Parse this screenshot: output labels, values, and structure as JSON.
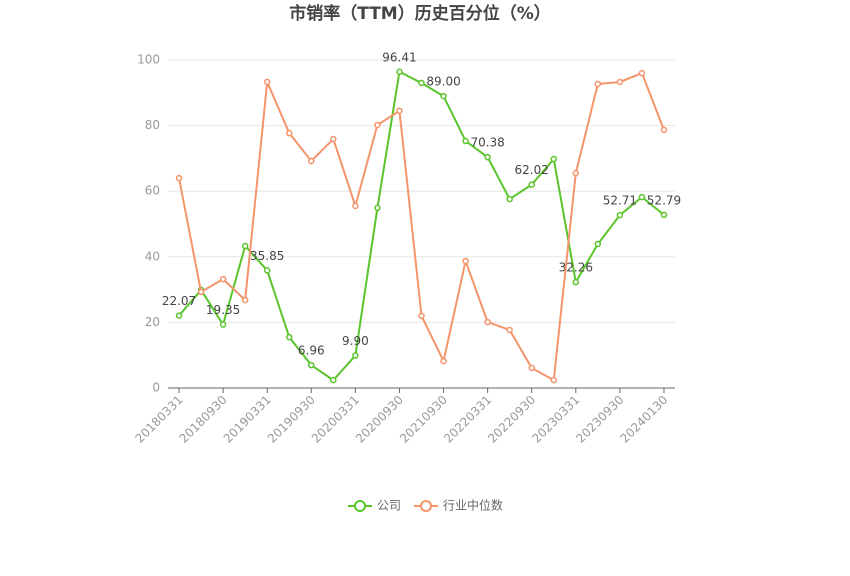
{
  "chart_data": {
    "type": "line",
    "title": "市销率（TTM）历史百分位（%）",
    "categories": [
      "20180331",
      null,
      "20180930",
      null,
      "20190331",
      null,
      "20190930",
      null,
      "20200331",
      null,
      "20200930",
      null,
      "20210930",
      null,
      "20220331",
      null,
      "20220930",
      null,
      "20230331",
      null,
      "20230930",
      null,
      "20240130"
    ],
    "series": [
      {
        "name": "公司",
        "color": "#5ac42c",
        "values": [
          22.07,
          29.9,
          19.35,
          43.3,
          35.85,
          15.5,
          6.96,
          2.4,
          9.9,
          54.9,
          96.41,
          93.0,
          89.0,
          75.3,
          70.38,
          57.6,
          62.02,
          69.8,
          32.26,
          43.9,
          52.71,
          58.2,
          52.79
        ],
        "value_labels": [
          "22.07",
          null,
          "19.35",
          null,
          "35.85",
          null,
          "6.96",
          null,
          "9.90",
          null,
          "96.41",
          null,
          "89.00",
          null,
          "70.38",
          null,
          "62.02",
          null,
          "32.26",
          null,
          "52.71",
          null,
          "52.79"
        ]
      },
      {
        "name": "行业中位数",
        "color": "#f4946a",
        "values": [
          64.0,
          29.3,
          33.2,
          26.8,
          93.3,
          77.7,
          69.2,
          75.9,
          55.5,
          80.2,
          84.5,
          22.0,
          8.2,
          38.7,
          20.1,
          17.7,
          6.1,
          2.4,
          65.5,
          92.7,
          93.3,
          96.0,
          78.7
        ]
      }
    ],
    "ylim": [
      0,
      100
    ],
    "yticks": [
      0,
      20,
      40,
      60,
      80,
      100
    ],
    "grid": true,
    "legend": "bottom"
  }
}
